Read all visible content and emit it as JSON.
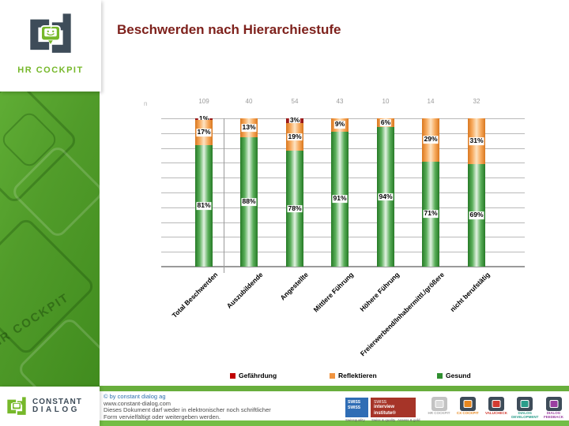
{
  "slide": {
    "title": "Beschwerden nach Hierarchiestufe"
  },
  "sidebar": {
    "logo_text": "HR COCKPIT",
    "watermark_text": "HR COCKPIT"
  },
  "chart_data": {
    "type": "bar",
    "subtype": "stacked-percent",
    "title": "Beschwerden nach Hierarchiestufe",
    "categories": [
      "Total Beschwerden",
      "Auszubildende",
      "Angestellte",
      "Mittlere Führung",
      "Höhere Führung",
      "Freierwerbend/Inhabermittl./größere",
      "nicht berufstätig"
    ],
    "counts": [
      109,
      40,
      54,
      43,
      10,
      14,
      32
    ],
    "counts_axis_label": "n",
    "series": [
      {
        "name": "Gefährdung",
        "color": "#c00000",
        "values": [
          1,
          0,
          3,
          0,
          0,
          0,
          0
        ]
      },
      {
        "name": "Reflektieren",
        "color": "#f09440",
        "values": [
          17,
          13,
          19,
          9,
          6,
          29,
          31
        ]
      },
      {
        "name": "Gesund",
        "color": "#2f8f2f",
        "values": [
          81,
          88,
          78,
          91,
          94,
          71,
          69
        ]
      }
    ],
    "ylim": [
      0,
      100
    ],
    "grid": true,
    "gridline_step_percent": 10,
    "legend_position": "bottom",
    "value_label_suffix": "%"
  },
  "footer": {
    "copyright": "© by constant dialog ag",
    "website": "www.constant-dialog.com",
    "disclaimer_line1": "Dieses Dokument darf weder in elektronischer noch schriftlicher",
    "disclaimer_line2": "Form vervielfältigt oder weitergeben werden.",
    "constant_logo": {
      "line1": "CONSTANT",
      "line2": "DIALOG"
    },
    "swiss_blue_box": {
      "line1": "SWISS",
      "line2": "SWISS",
      "caption": "Swissquality"
    },
    "swiss_red_box": {
      "line1": "SWISS",
      "line2": "interview institute®",
      "caption1": "Swiss & quality",
      "caption2": "Assess & gold"
    },
    "product_logos": [
      {
        "label": "HR COCKPIT",
        "color": "#a8a8a8",
        "body": "#c3c3c3",
        "accent": "#d9d9d9"
      },
      {
        "label": "CX COCKPIT",
        "color": "#e8871e",
        "body": "#3e4c59",
        "accent": "#e8871e"
      },
      {
        "label": "VALUCHECK",
        "color": "#d23b31",
        "body": "#3e4c59",
        "accent": "#d23b31"
      },
      {
        "label": "DIALOG DEVELOPMENT",
        "color": "#2a9d8a",
        "body": "#3e4c59",
        "accent": "#2a9d8a"
      },
      {
        "label": "DIALOG FEEDBACK",
        "color": "#9b3fa0",
        "body": "#3e4c59",
        "accent": "#9b3fa0"
      }
    ]
  },
  "colors": {
    "title_text": "#7e211c",
    "brand_green": "#76b82a",
    "brand_slate": "#3e4c59",
    "footer_strip_green": "#68ae3c",
    "gridline_gray": "#b9b9b9"
  }
}
